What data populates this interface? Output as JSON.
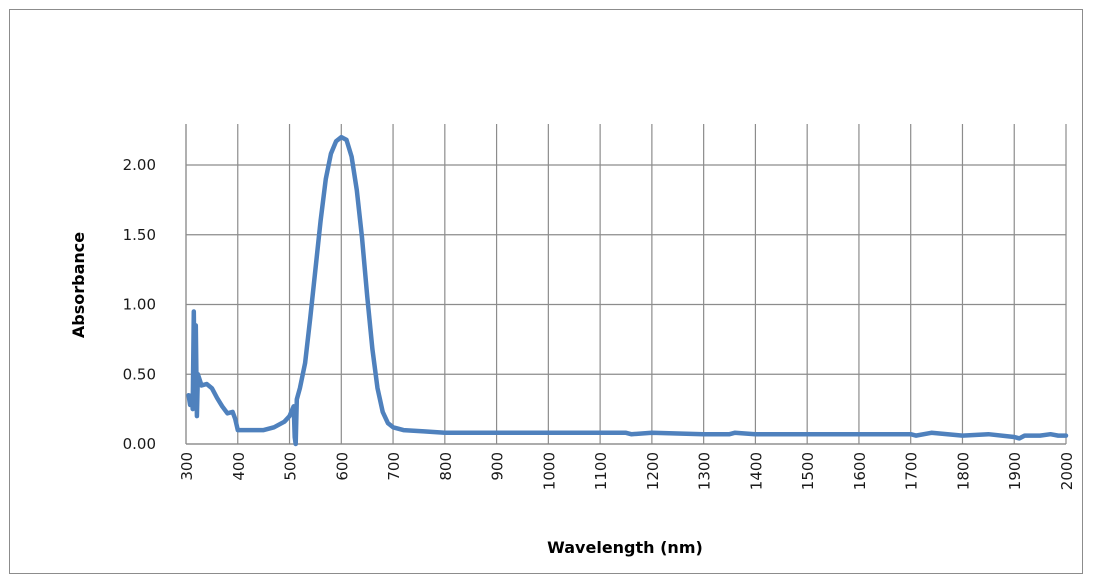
{
  "chart_data": {
    "type": "line",
    "title": "",
    "xlabel": "Wavelength (nm)",
    "ylabel": "Absorbance",
    "xlim": [
      300,
      2000
    ],
    "ylim": [
      0,
      2.2
    ],
    "grid": true,
    "legend": "none",
    "x_ticks": [
      "300",
      "400",
      "500",
      "600",
      "700",
      "800",
      "900",
      "1000",
      "1100",
      "1200",
      "1300",
      "1400",
      "1500",
      "1600",
      "1700",
      "1800",
      "1900",
      "2000"
    ],
    "y_ticks": [
      "0.00",
      "0.50",
      "1.00",
      "1.50",
      "2.00"
    ],
    "series": [
      {
        "color": "#4f81bd",
        "points": [
          [
            305,
            0.35
          ],
          [
            308,
            0.28
          ],
          [
            311,
            0.35
          ],
          [
            313,
            0.25
          ],
          [
            315,
            0.95
          ],
          [
            317,
            0.3
          ],
          [
            319,
            0.85
          ],
          [
            321,
            0.2
          ],
          [
            323,
            0.5
          ],
          [
            330,
            0.42
          ],
          [
            340,
            0.43
          ],
          [
            350,
            0.4
          ],
          [
            360,
            0.33
          ],
          [
            370,
            0.27
          ],
          [
            380,
            0.22
          ],
          [
            390,
            0.23
          ],
          [
            395,
            0.18
          ],
          [
            400,
            0.1
          ],
          [
            410,
            0.1
          ],
          [
            430,
            0.1
          ],
          [
            450,
            0.1
          ],
          [
            470,
            0.12
          ],
          [
            490,
            0.16
          ],
          [
            500,
            0.2
          ],
          [
            508,
            0.27
          ],
          [
            510,
            0.05
          ],
          [
            512,
            0.0
          ],
          [
            514,
            0.32
          ],
          [
            520,
            0.4
          ],
          [
            530,
            0.58
          ],
          [
            540,
            0.9
          ],
          [
            550,
            1.25
          ],
          [
            560,
            1.6
          ],
          [
            570,
            1.9
          ],
          [
            580,
            2.08
          ],
          [
            590,
            2.17
          ],
          [
            600,
            2.2
          ],
          [
            610,
            2.18
          ],
          [
            620,
            2.06
          ],
          [
            630,
            1.82
          ],
          [
            640,
            1.48
          ],
          [
            650,
            1.06
          ],
          [
            660,
            0.68
          ],
          [
            670,
            0.4
          ],
          [
            680,
            0.23
          ],
          [
            690,
            0.15
          ],
          [
            700,
            0.12
          ],
          [
            720,
            0.1
          ],
          [
            760,
            0.09
          ],
          [
            800,
            0.08
          ],
          [
            900,
            0.08
          ],
          [
            1000,
            0.08
          ],
          [
            1100,
            0.08
          ],
          [
            1150,
            0.08
          ],
          [
            1160,
            0.07
          ],
          [
            1200,
            0.08
          ],
          [
            1300,
            0.07
          ],
          [
            1350,
            0.07
          ],
          [
            1360,
            0.08
          ],
          [
            1400,
            0.07
          ],
          [
            1500,
            0.07
          ],
          [
            1600,
            0.07
          ],
          [
            1650,
            0.07
          ],
          [
            1700,
            0.07
          ],
          [
            1710,
            0.06
          ],
          [
            1740,
            0.08
          ],
          [
            1800,
            0.06
          ],
          [
            1850,
            0.07
          ],
          [
            1900,
            0.05
          ],
          [
            1910,
            0.04
          ],
          [
            1920,
            0.06
          ],
          [
            1950,
            0.06
          ],
          [
            1970,
            0.07
          ],
          [
            1985,
            0.06
          ],
          [
            2000,
            0.06
          ]
        ]
      }
    ]
  }
}
